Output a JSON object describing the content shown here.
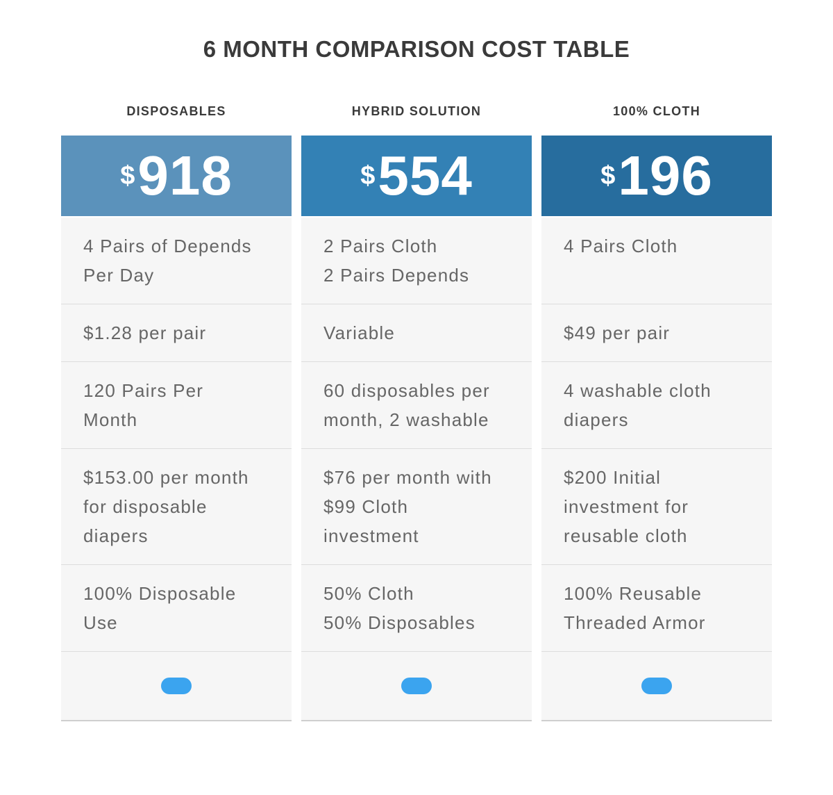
{
  "title": "6 MONTH COMPARISON COST TABLE",
  "colors": {
    "page_bg": "#ffffff",
    "cell_bg": "#f6f6f6",
    "cell_text": "#666666",
    "heading_text": "#3a3a3a",
    "separator": "#dddddd",
    "pill": "#3ba4ef"
  },
  "table": {
    "columns": [
      {
        "name": "DISPOSABLES",
        "currency": "$",
        "price": "918",
        "header_bg": "#5b92bb",
        "rows": [
          "4 Pairs of Depends\nPer Day",
          "$1.28 per pair",
          "120 Pairs Per\nMonth",
          "$153.00 per month\nfor disposable\ndiapers",
          "100% Disposable\nUse"
        ]
      },
      {
        "name": "HYBRID SOLUTION",
        "currency": "$",
        "price": "554",
        "header_bg": "#3381b5",
        "rows": [
          "2 Pairs Cloth\n2 Pairs Depends",
          "Variable",
          "60 disposables per\nmonth, 2 washable",
          "$76 per month with\n$99 Cloth\ninvestment",
          "50% Cloth\n50% Disposables"
        ]
      },
      {
        "name": "100% CLOTH",
        "currency": "$",
        "price": "196",
        "header_bg": "#276d9e",
        "rows": [
          "4 Pairs Cloth",
          "$49 per pair",
          "4 washable cloth\ndiapers",
          "$200 Initial\ninvestment for\nreusable cloth",
          "100% Reusable\nThreaded Armor"
        ]
      }
    ]
  },
  "chart_data": {
    "type": "table",
    "title": "6 MONTH COMPARISON COST TABLE",
    "columns": [
      "DISPOSABLES",
      "HYBRID SOLUTION",
      "100% CLOTH"
    ],
    "totals_usd": [
      918,
      554,
      196
    ],
    "rows": [
      [
        "4 Pairs of Depends Per Day",
        "2 Pairs Cloth 2 Pairs Depends",
        "4 Pairs Cloth"
      ],
      [
        "$1.28 per pair",
        "Variable",
        "$49 per pair"
      ],
      [
        "120 Pairs Per Month",
        "60 disposables per month, 2 washable",
        "4 washable cloth diapers"
      ],
      [
        "$153.00 per month for disposable diapers",
        "$76 per month with $99 Cloth investment",
        "$200 Initial investment for reusable cloth"
      ],
      [
        "100% Disposable Use",
        "50% Cloth 50% Disposables",
        "100% Reusable Threaded Armor"
      ]
    ]
  }
}
